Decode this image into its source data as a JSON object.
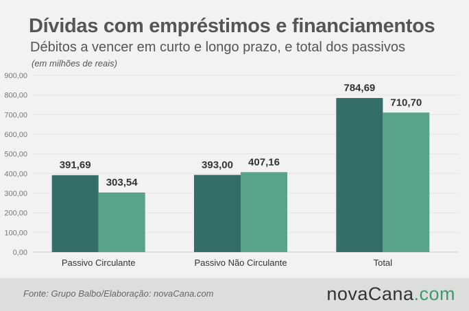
{
  "title": "Dívidas com empréstimos e financiamentos",
  "subtitle": "Débitos a vencer em curto e longo prazo, e total dos passivos",
  "units_note": "(em milhões de reais)",
  "footer": {
    "source": "Fonte:  Grupo  Balbo/Elaboração:  novaCana.com",
    "brand": {
      "name": "novaCana",
      "dot": ".",
      "tld": "com"
    }
  },
  "colors": {
    "series_1": "#336e68",
    "series_2": "#5aa38b",
    "grid": "#e3e3e3",
    "axis": "#cfcfcf"
  },
  "chart_data": {
    "type": "bar",
    "categories": [
      "Passivo Circulante",
      "Passivo Não Circulante",
      "Total"
    ],
    "series": [
      {
        "values": [
          391.69,
          393.0,
          784.69
        ],
        "labels": [
          "391,69",
          "393,00",
          "784,69"
        ]
      },
      {
        "values": [
          303.54,
          407.16,
          710.7
        ],
        "labels": [
          "303,54",
          "407,16",
          "710,70"
        ]
      }
    ],
    "ylim": [
      0,
      900
    ],
    "yticks": [
      0,
      100,
      200,
      300,
      400,
      500,
      600,
      700,
      800,
      900
    ],
    "ytick_labels": [
      "0,00",
      "100,00",
      "200,00",
      "300,00",
      "400,00",
      "500,00",
      "600,00",
      "700,00",
      "800,00",
      "900,00"
    ],
    "grid": true,
    "legend": "none"
  }
}
